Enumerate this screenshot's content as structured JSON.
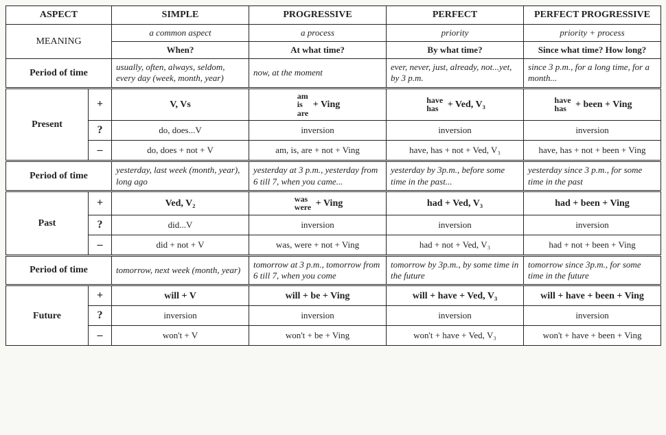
{
  "headers": {
    "aspect": "ASPECT",
    "simple": "SIMPLE",
    "progressive": "PROGRESSIVE",
    "perfect": "PERFECT",
    "perfect_progressive": "PERFECT PROGRESSIVE"
  },
  "meaning": {
    "label": "MEANING",
    "row1": {
      "simple": "a common aspect",
      "progressive": "a process",
      "perfect": "priority",
      "perfect_progressive": "priority + process"
    },
    "row2": {
      "simple": "When?",
      "progressive": "At what time?",
      "perfect": "By what time?",
      "perfect_progressive": "Since what time? How long?"
    }
  },
  "period_label": "Period of time",
  "signs": {
    "plus": "+",
    "q": "?",
    "minus": "–"
  },
  "present": {
    "label": "Present",
    "period": {
      "simple": "usually, often, always, seldom, every day (week, month, year)",
      "progressive": "now, at the moment",
      "perfect": "ever, never, just, already, not...yet, by 3 p.m.",
      "perfect_progressive": "since 3 p.m., for a long time, for a month..."
    },
    "plus": {
      "simple": "V, Vs",
      "progressive_stack": [
        "am",
        "is",
        "are"
      ],
      "progressive_tail": " + Ving",
      "perfect_stack": [
        "have",
        "has"
      ],
      "perfect_tail": " + Ved, V₃",
      "pp_stack": [
        "have",
        "has"
      ],
      "pp_tail": " + been + Ving"
    },
    "q": {
      "simple": "do, does...V",
      "progressive": "inversion",
      "perfect": "inversion",
      "perfect_progressive": "inversion"
    },
    "minus": {
      "simple": "do, does + not + V",
      "progressive": "am, is, are + not + Ving",
      "perfect": "have, has + not + Ved, V₃",
      "perfect_progressive": "have, has + not + been + Ving"
    }
  },
  "past": {
    "label": "Past",
    "period": {
      "simple": "yesterday, last week (month, year), long ago",
      "progressive": "yesterday at 3 p.m., yesterday from 6 till 7, when you came...",
      "perfect": "yesterday by 3p.m., before some time in the past...",
      "perfect_progressive": "yesterday since 3 p.m., for some time in the past"
    },
    "plus": {
      "simple": "Ved, V₂",
      "progressive_stack": [
        "was",
        "were"
      ],
      "progressive_tail": " + Ving",
      "perfect": "had + Ved, V₃",
      "perfect_progressive": "had + been + Ving"
    },
    "q": {
      "simple": "did...V",
      "progressive": "inversion",
      "perfect": "inversion",
      "perfect_progressive": "inversion"
    },
    "minus": {
      "simple": "did + not + V",
      "progressive": "was, were + not + Ving",
      "perfect": "had + not + Ved, V₃",
      "perfect_progressive": "had + not + been + Ving"
    }
  },
  "future": {
    "label": "Future",
    "period": {
      "simple": "tomorrow, next week (month, year)",
      "progressive": "tomorrow at 3 p.m., tomorrow from 6 till 7, when you come",
      "perfect": "tomorrow by 3p.m., by some time in the future",
      "perfect_progressive": "tomorrow since 3p.m., for some time in the future"
    },
    "plus": {
      "simple": "will + V",
      "progressive": "will + be + Ving",
      "perfect": "will + have + Ved, V₃",
      "perfect_progressive": "will + have + been + Ving"
    },
    "q": {
      "simple": "inversion",
      "progressive": "inversion",
      "perfect": "inversion",
      "perfect_progressive": "inversion"
    },
    "minus": {
      "simple": "won't + V",
      "progressive": "won't + be + Ving",
      "perfect": "won't + have + Ved, V₃",
      "perfect_progressive": "won't + have + been + Ving"
    }
  }
}
